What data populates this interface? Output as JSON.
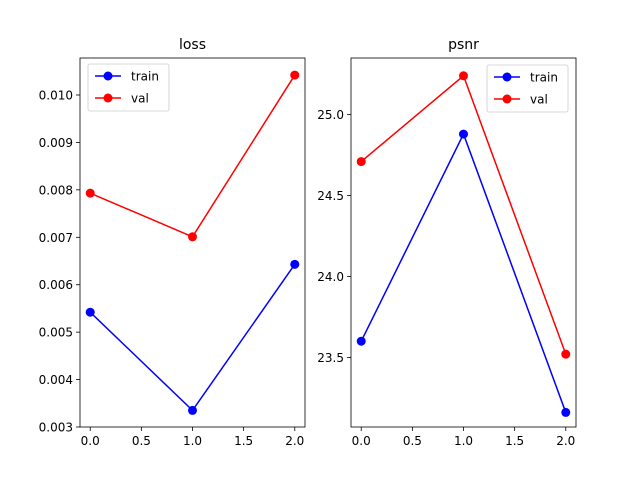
{
  "chart_data": [
    {
      "type": "line",
      "title": "loss",
      "xlabel": "",
      "ylabel": "",
      "x": [
        0,
        1,
        2
      ],
      "xlim": [
        -0.1,
        2.1
      ],
      "ylim": [
        0.003,
        0.01078
      ],
      "xticks": [
        0.0,
        0.5,
        1.0,
        1.5,
        2.0
      ],
      "xtick_labels": [
        "0.0",
        "0.5",
        "1.0",
        "1.5",
        "2.0"
      ],
      "yticks": [
        0.003,
        0.004,
        0.005,
        0.006,
        0.007,
        0.008,
        0.009,
        0.01
      ],
      "ytick_labels": [
        "0.003",
        "0.004",
        "0.005",
        "0.006",
        "0.007",
        "0.008",
        "0.009",
        "0.010"
      ],
      "legend_position": "top-left",
      "grid": false,
      "series": [
        {
          "name": "train",
          "color": "#0000ff",
          "values": [
            0.00542,
            0.00335,
            0.00643
          ]
        },
        {
          "name": "val",
          "color": "#ff0000",
          "values": [
            0.00793,
            0.00701,
            0.01042
          ]
        }
      ]
    },
    {
      "type": "line",
      "title": "psnr",
      "xlabel": "",
      "ylabel": "",
      "x": [
        0,
        1,
        2
      ],
      "xlim": [
        -0.1,
        2.1
      ],
      "ylim": [
        23.07,
        25.35
      ],
      "xticks": [
        0.0,
        0.5,
        1.0,
        1.5,
        2.0
      ],
      "xtick_labels": [
        "0.0",
        "0.5",
        "1.0",
        "1.5",
        "2.0"
      ],
      "yticks": [
        23.5,
        24.0,
        24.5,
        25.0
      ],
      "ytick_labels": [
        "23.5",
        "24.0",
        "24.5",
        "25.0"
      ],
      "legend_position": "top-right",
      "grid": false,
      "series": [
        {
          "name": "train",
          "color": "#0000ff",
          "values": [
            23.6,
            24.88,
            23.16
          ]
        },
        {
          "name": "val",
          "color": "#ff0000",
          "values": [
            24.71,
            25.24,
            23.52
          ]
        }
      ]
    }
  ]
}
